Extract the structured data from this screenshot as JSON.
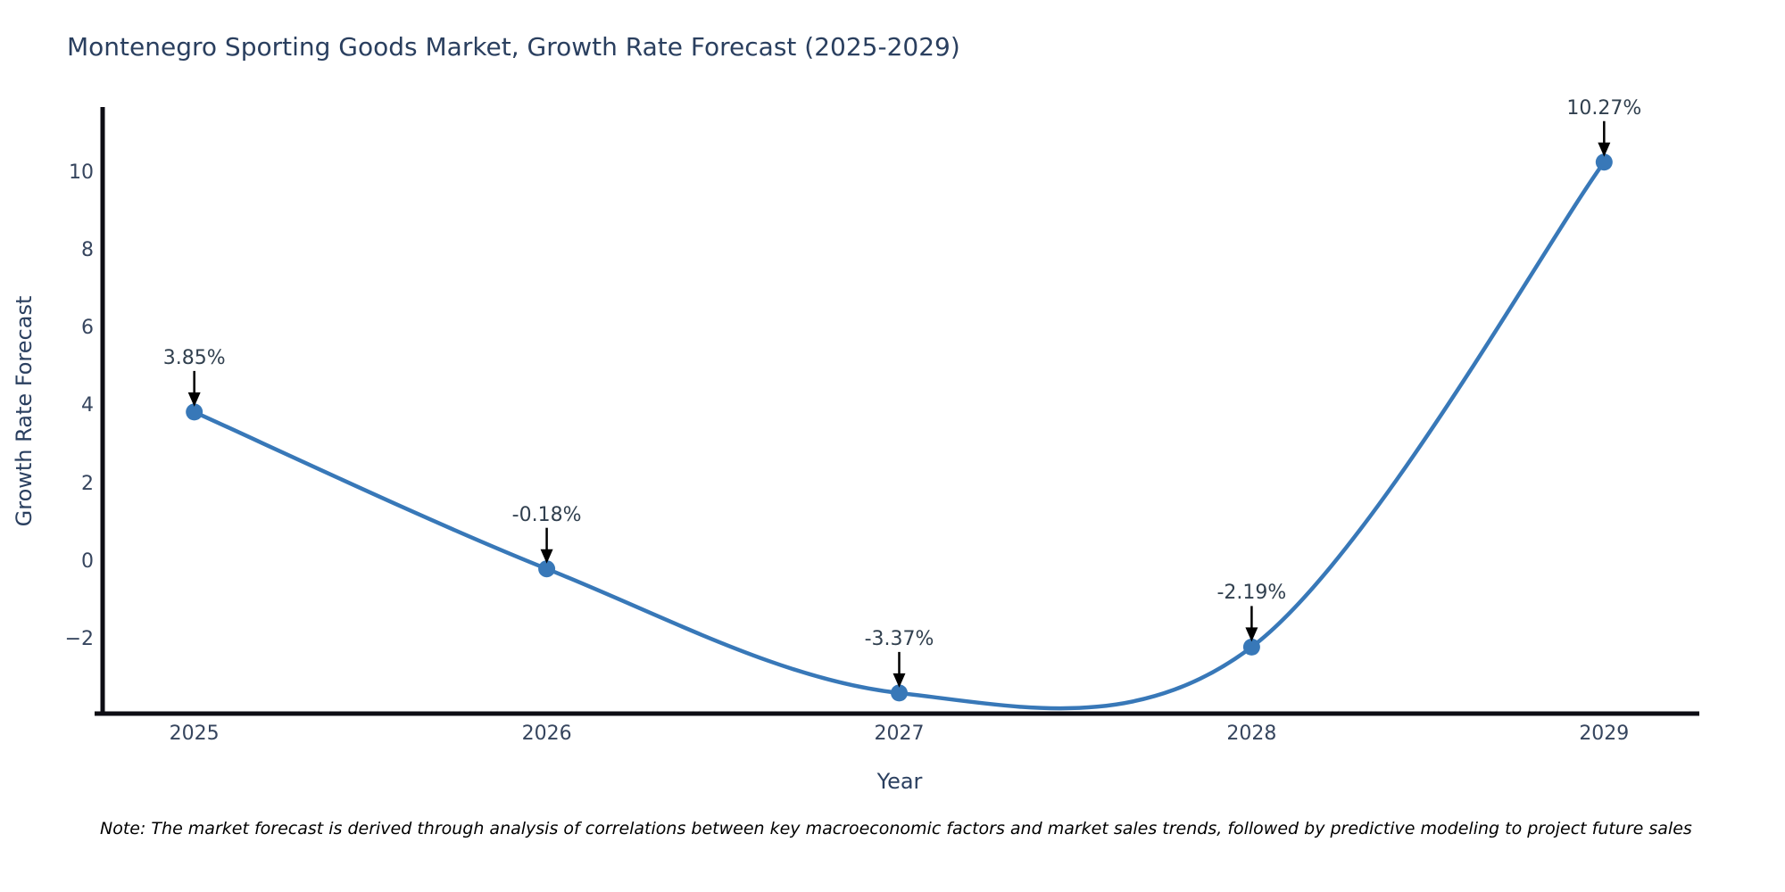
{
  "chart_data": {
    "type": "line",
    "title": "Montenegro Sporting Goods Market, Growth Rate Forecast (2025-2029)",
    "xlabel": "Year",
    "ylabel": "Growth Rate Forecast",
    "x": [
      2025,
      2026,
      2027,
      2028,
      2029
    ],
    "values": [
      3.85,
      -0.18,
      -3.37,
      -2.19,
      10.27
    ],
    "point_labels": [
      "3.85%",
      "-0.18%",
      "-3.37%",
      "-2.19%",
      "10.27%"
    ],
    "x_tick_labels": [
      "2025",
      "2026",
      "2027",
      "2028",
      "2029"
    ],
    "y_ticks": [
      10,
      8,
      6,
      4,
      2,
      0,
      -2
    ],
    "xlim": [
      2024.74,
      2029.26
    ],
    "ylim": [
      -3.9,
      11.64
    ],
    "line_shape": "spline",
    "grid": false,
    "legend_position": "none",
    "colors": {
      "line": "#3878b8",
      "marker": "#3878b8",
      "axis": "#0d0d14",
      "tick_label": "#36455e",
      "title": "#2a3f5f",
      "annotation_text": "#31404f",
      "arrow": "#000000",
      "background": "#ffffff"
    }
  },
  "note": {
    "text": "Note: The market forecast is derived through analysis of correlations between key macroeconomic factors and market sales trends, followed by predictive modeling to project future sales"
  }
}
